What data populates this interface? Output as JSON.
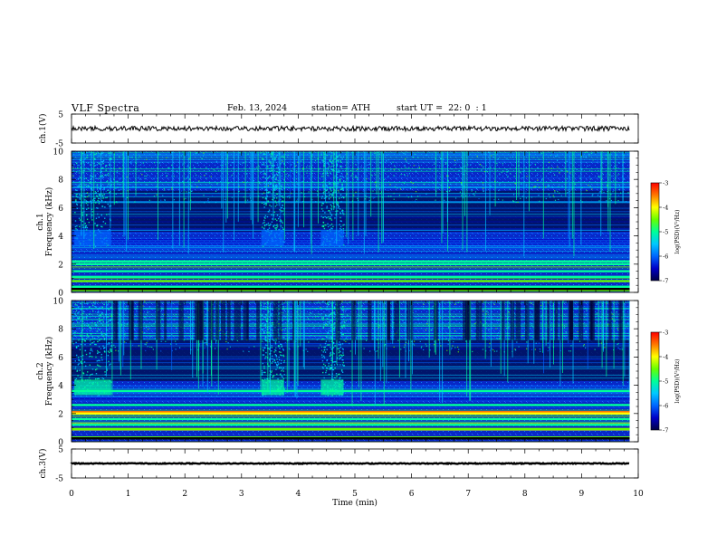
{
  "chart_data": {
    "type": "heatmap",
    "title": "VLF Spectra",
    "date": "Feb. 13, 2024",
    "station": "station= ATH",
    "start_ut": "start UT =  22: 0  : 1",
    "xlabel": "Time (min)",
    "xlim": [
      0,
      10
    ],
    "xticks": [
      "0",
      "1",
      "2",
      "3",
      "4",
      "5",
      "6",
      "7",
      "8",
      "9",
      "10"
    ],
    "panels": [
      {
        "id": "ch1-waveform",
        "type": "line",
        "ylabel": "ch.1(V)",
        "ylim": [
          -5,
          5
        ],
        "yticks": [
          "5",
          "-5"
        ],
        "baseline_v": 0,
        "data_end_min": 9.85
      },
      {
        "id": "ch1-spectrogram",
        "type": "heatmap",
        "ylabel_channel": "ch.1",
        "ylabel": "Frequency (kHz)",
        "ylim": [
          0,
          10
        ],
        "yticks": [
          "0",
          "2",
          "4",
          "6",
          "8",
          "10"
        ],
        "data_end_min": 9.85,
        "colorbar": {
          "label": "log(PSD)(V²/Hz)",
          "range": [
            -7,
            -3
          ],
          "ticks": [
            "-3",
            "-4",
            "-5",
            "-6",
            "-7"
          ]
        }
      },
      {
        "id": "ch2-spectrogram",
        "type": "heatmap",
        "ylabel_channel": "ch.2",
        "ylabel": "Frequency (kHz)",
        "ylim": [
          0,
          10
        ],
        "yticks": [
          "0",
          "2",
          "4",
          "6",
          "8",
          "10"
        ],
        "data_end_min": 9.85,
        "colorbar": {
          "label": "log(PSD)(V²/Hz)",
          "range": [
            -7,
            -3
          ],
          "ticks": [
            "-3",
            "-4",
            "-5",
            "-6",
            "-7"
          ]
        }
      },
      {
        "id": "ch3-waveform",
        "type": "line",
        "ylabel": "ch.3(V)",
        "ylim": [
          -5,
          5
        ],
        "yticks": [
          "5",
          "-5"
        ],
        "baseline_v": 0,
        "data_end_min": 9.85
      }
    ],
    "colormap": [
      "#000044",
      "#0000c8",
      "#0066ff",
      "#00c8ff",
      "#00ff99",
      "#66ff00",
      "#ffff00",
      "#ff7700",
      "#ff0000",
      "#ffffff"
    ]
  }
}
